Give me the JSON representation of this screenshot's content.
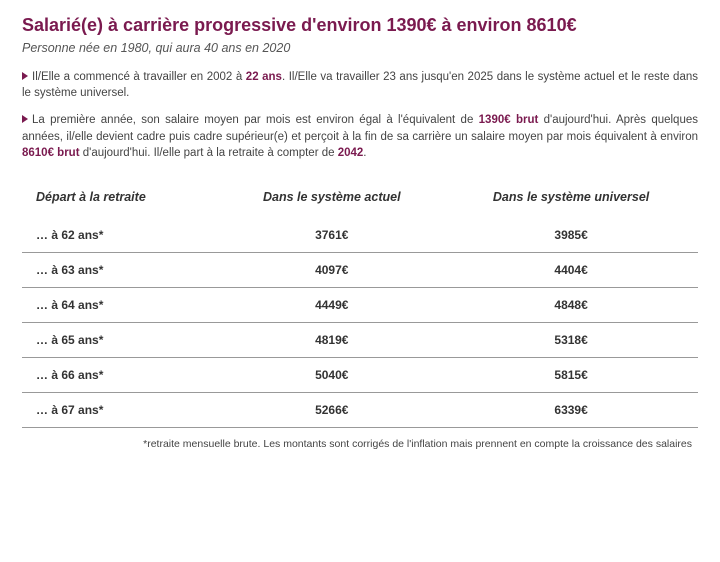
{
  "colors": {
    "accent": "#7a1a4f",
    "text": "#333333",
    "subtext": "#555555",
    "rule": "#999999"
  },
  "title": "Salarié(e) à carrière progressive d'environ 1390€ à environ 8610€",
  "subtitle": "Personne née en 1980, qui aura 40 ans en 2020",
  "para1_a": "Il/Elle a commencé à travailler en 2002 à ",
  "para1_hl": "22 ans",
  "para1_b": ". Il/Elle va travailler 23 ans jusqu'en 2025 dans le système actuel et le reste dans le système universel.",
  "para2_a": "La première année, son salaire moyen par mois est environ égal à l'équivalent de ",
  "para2_hl1": "1390€ brut",
  "para2_b": " d'aujourd'hui. Après quelques années, il/elle devient cadre puis cadre supérieur(e) et perçoit à la fin de sa carrière un salaire moyen par mois équivalent à environ ",
  "para2_hl2": "8610€ brut",
  "para2_c": " d'aujourd'hui. Il/elle part à la retraite à compter de ",
  "para2_hl3": "2042",
  "para2_d": ".",
  "table": {
    "headers": [
      "Départ à la retraite",
      "Dans le système actuel",
      "Dans le système universel"
    ],
    "rows": [
      [
        "… à 62 ans*",
        "3761€",
        "3985€"
      ],
      [
        "… à 63 ans*",
        "4097€",
        "4404€"
      ],
      [
        "… à 64 ans*",
        "4449€",
        "4848€"
      ],
      [
        "… à 65 ans*",
        "4819€",
        "5318€"
      ],
      [
        "… à 66 ans*",
        "5040€",
        "5815€"
      ],
      [
        "… à 67 ans*",
        "5266€",
        "6339€"
      ]
    ]
  },
  "footnote": "*retraite mensuelle brute. Les montants sont corrigés de l'inflation mais prennent en compte la croissance des salaires"
}
